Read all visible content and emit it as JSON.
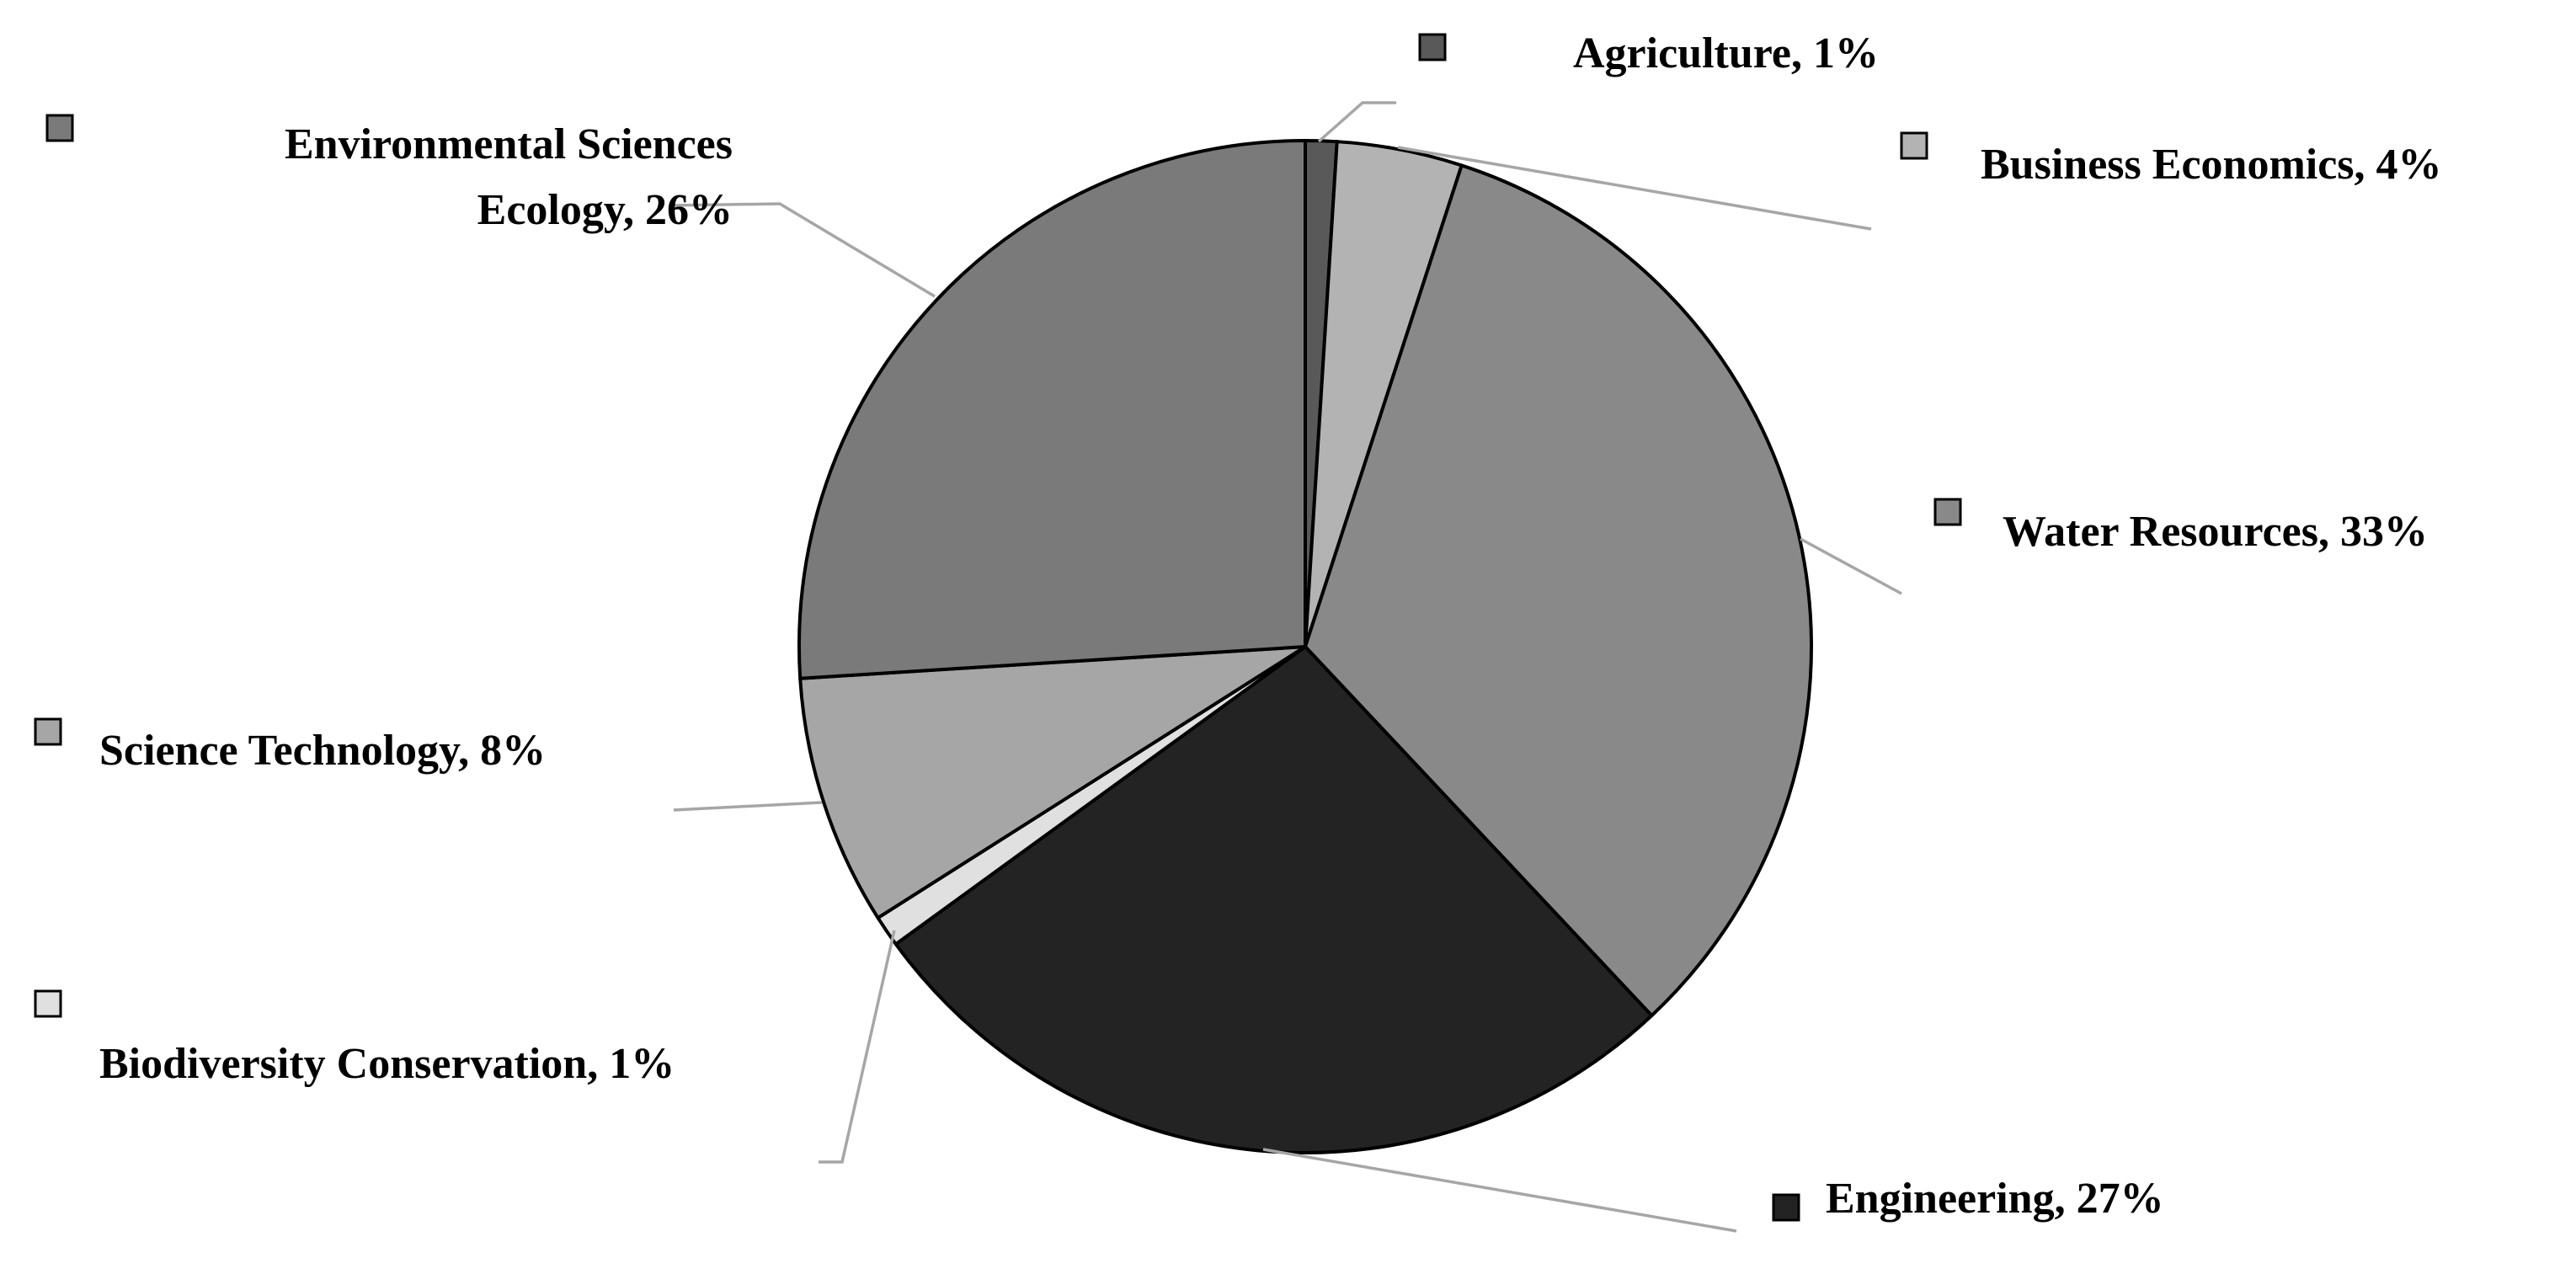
{
  "chart_data": {
    "type": "pie",
    "title": "",
    "series": [
      {
        "slices": [
          {
            "label": "Agriculture",
            "value": 1,
            "data_label": "Agriculture, 1%",
            "color": "#595959"
          },
          {
            "label": "Business Economics",
            "value": 4,
            "data_label": "Business Economics, 4%",
            "color": "#b3b3b3"
          },
          {
            "label": "Water Resources",
            "value": 33,
            "data_label": "Water Resources, 33%",
            "color": "#898989"
          },
          {
            "label": "Engineering",
            "value": 27,
            "data_label": "Engineering, 27%",
            "color": "#232323"
          },
          {
            "label": "Biodiversity Conservation",
            "value": 1,
            "data_label": "Biodiversity Conservation, 1%",
            "color": "#e0e0e0"
          },
          {
            "label": "Science Technology",
            "value": 8,
            "data_label": "Science Technology, 8%",
            "color": "#a6a6a6"
          },
          {
            "label": "Environmental Sciences Ecology",
            "value": 26,
            "data_label": "Environmental Sciences Ecology, 26%",
            "color": "#7a7a7a"
          }
        ]
      }
    ],
    "legend": "none",
    "data_labels": "outside-with-leader-lines"
  }
}
